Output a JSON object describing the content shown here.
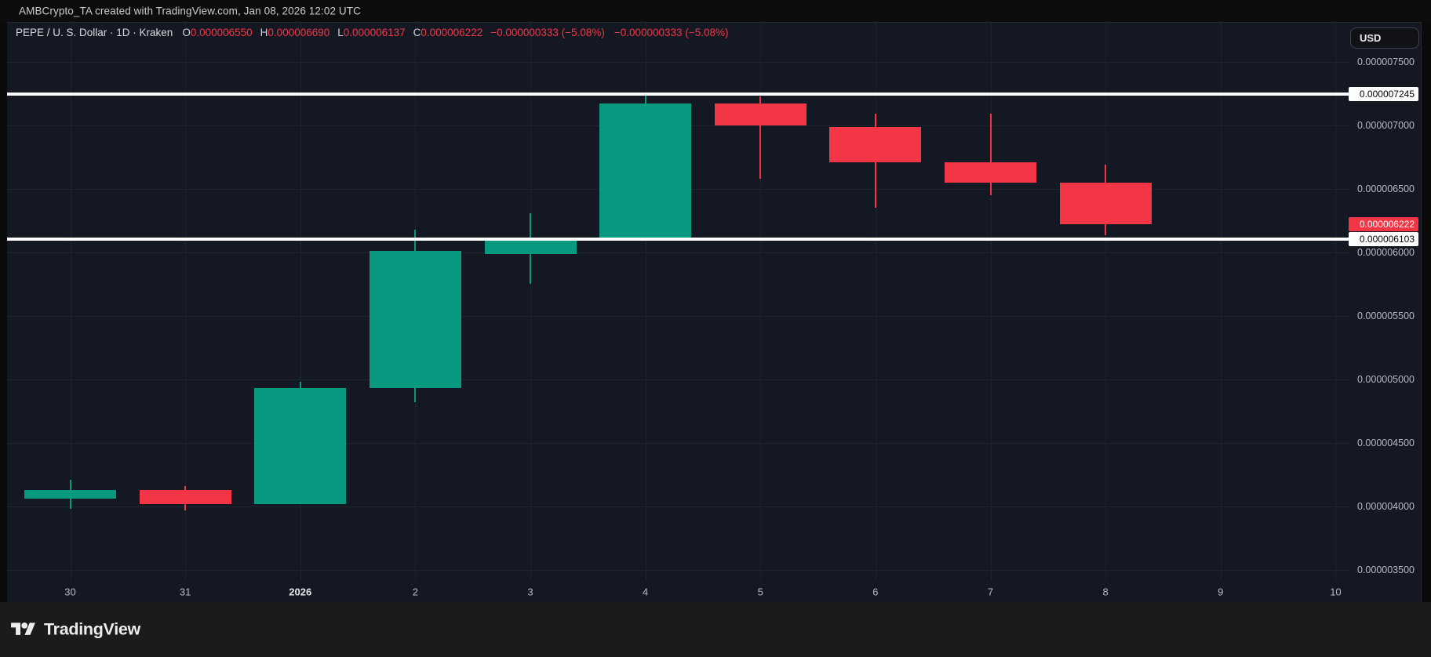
{
  "top_bar": {
    "text": "AMBCrypto_TA created with TradingView.com, Jan 08, 2026 12:02 UTC"
  },
  "legend": {
    "title": "PEPE / U. S. Dollar · 1D · Kraken",
    "ohlc": [
      {
        "label": "O",
        "value": "0.000006550"
      },
      {
        "label": "H",
        "value": "0.000006690"
      },
      {
        "label": "L",
        "value": "0.000006137"
      },
      {
        "label": "C",
        "value": "0.000006222"
      }
    ],
    "change_1": "−0.000000333 (−5.08%)",
    "change_2": "−0.000000333 (−5.08%)"
  },
  "currency_button": {
    "label": "USD"
  },
  "price_axis": {
    "ticks": [
      {
        "label": "0.000007500",
        "price": 7.5e-06
      },
      {
        "label": "0.000007000",
        "price": 7e-06
      },
      {
        "label": "0.000006500",
        "price": 6.5e-06
      },
      {
        "label": "0.000006000",
        "price": 6e-06
      },
      {
        "label": "0.000005500",
        "price": 5.5e-06
      },
      {
        "label": "0.000005000",
        "price": 5e-06
      },
      {
        "label": "0.000004500",
        "price": 4.5e-06
      },
      {
        "label": "0.000004000",
        "price": 4e-06
      },
      {
        "label": "0.000003500",
        "price": 3.5e-06
      }
    ]
  },
  "time_axis": {
    "labels": [
      {
        "text": "30"
      },
      {
        "text": "31"
      },
      {
        "text": "2026",
        "year": true
      },
      {
        "text": "2"
      },
      {
        "text": "3"
      },
      {
        "text": "4"
      },
      {
        "text": "5"
      },
      {
        "text": "6"
      },
      {
        "text": "7"
      },
      {
        "text": "8"
      },
      {
        "text": "9"
      },
      {
        "text": "10"
      }
    ]
  },
  "chart_data": {
    "type": "candlestick",
    "title": "PEPE / U. S. Dollar, 1D, Kraken",
    "x": [
      "Dec 30",
      "Dec 31",
      "Jan 1 2026",
      "Jan 2",
      "Jan 3",
      "Jan 4",
      "Jan 5",
      "Jan 6",
      "Jan 7",
      "Jan 8"
    ],
    "candles": [
      {
        "open": 4.06e-06,
        "high": 4.21e-06,
        "low": 3.98e-06,
        "close": 4.13e-06,
        "direction": "up"
      },
      {
        "open": 4.13e-06,
        "high": 4.16e-06,
        "low": 3.97e-06,
        "close": 4.02e-06,
        "direction": "down"
      },
      {
        "open": 4.02e-06,
        "high": 4.98e-06,
        "low": 4.02e-06,
        "close": 4.93e-06,
        "direction": "up"
      },
      {
        "open": 4.93e-06,
        "high": 6.18e-06,
        "low": 4.82e-06,
        "close": 6.01e-06,
        "direction": "up"
      },
      {
        "open": 5.99e-06,
        "high": 6.31e-06,
        "low": 5.75e-06,
        "close": 6.11e-06,
        "direction": "up"
      },
      {
        "open": 6.11e-06,
        "high": 7.245e-06,
        "low": 6.11e-06,
        "close": 7.17e-06,
        "direction": "up"
      },
      {
        "open": 7.17e-06,
        "high": 7.23e-06,
        "low": 6.58e-06,
        "close": 7e-06,
        "direction": "down"
      },
      {
        "open": 6.99e-06,
        "high": 7.09e-06,
        "low": 6.35e-06,
        "close": 6.71e-06,
        "direction": "down"
      },
      {
        "open": 6.71e-06,
        "high": 7.09e-06,
        "low": 6.45e-06,
        "close": 6.55e-06,
        "direction": "down"
      },
      {
        "open": 6.55e-06,
        "high": 6.69e-06,
        "low": 6.137e-06,
        "close": 6.222e-06,
        "direction": "down"
      }
    ],
    "horizontal_levels": [
      {
        "price": 7.245e-06,
        "label": "0.000007245"
      },
      {
        "price": 6.103e-06,
        "label": "0.000006103"
      }
    ],
    "last_price": {
      "price": 6.222e-06,
      "label": "0.000006222"
    },
    "y_range_approx": [
      3.4e-06,
      7.8e-06
    ],
    "grid": true,
    "up_color": "#089981",
    "down_color": "#f23645"
  },
  "footer": {
    "brand": "TradingView"
  }
}
